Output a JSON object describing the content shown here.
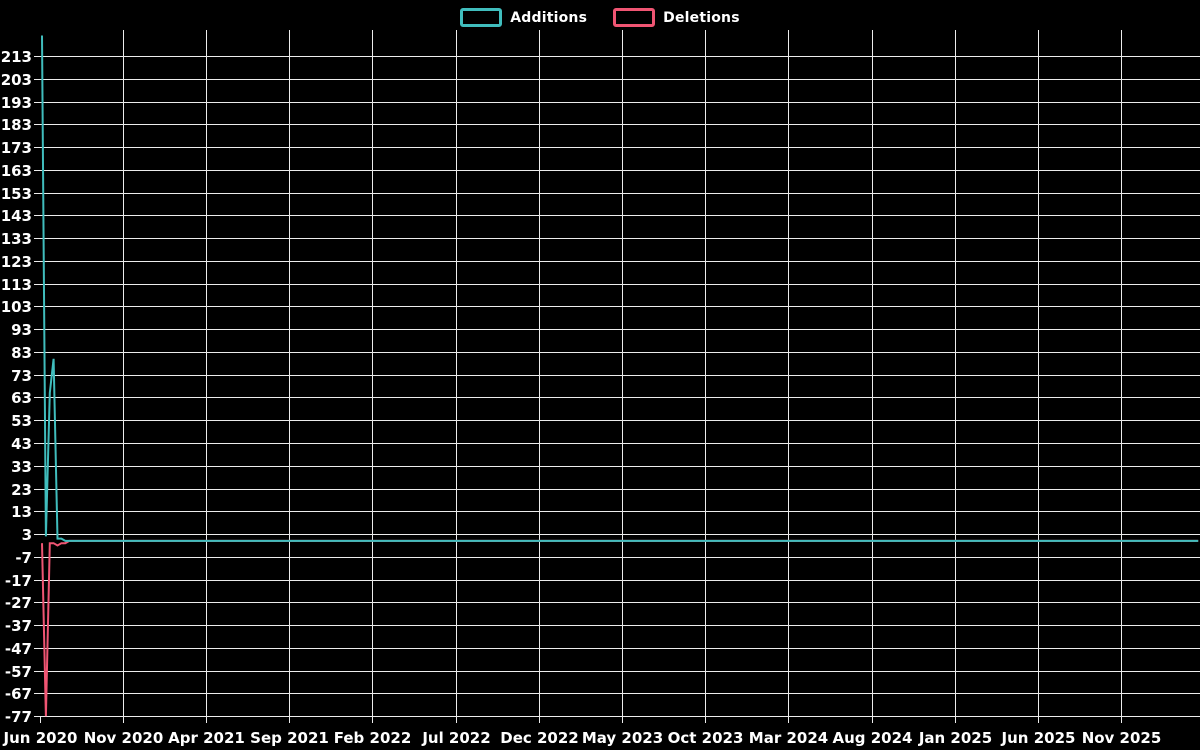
{
  "page": {
    "background_color": "#000000",
    "text_color": "#ffffff"
  },
  "chart_data": {
    "type": "line",
    "title": "",
    "legend_position": "top-center",
    "grid": true,
    "grid_color": "#ececec",
    "background_color": "#000000",
    "text_color": "#ffffff",
    "x_tick_labels": [
      "Jun 2020",
      "Nov 2020",
      "Apr 2021",
      "Sep 2021",
      "Feb 2022",
      "Jul 2022",
      "Dec 2022",
      "May 2023",
      "Oct 2023",
      "Mar 2024",
      "Aug 2024",
      "Jan 2025",
      "Jun 2025",
      "Nov 2025"
    ],
    "y_tick_labels": [
      213,
      203,
      193,
      183,
      173,
      163,
      153,
      143,
      133,
      123,
      113,
      103,
      93,
      83,
      73,
      63,
      53,
      43,
      33,
      23,
      13,
      3,
      -7,
      -17,
      -27,
      -37,
      -47,
      -57,
      -67,
      -77
    ],
    "ylim": [
      -81,
      225
    ],
    "x_unit": "weeks from first point (Jun 2020), flat tail extends past Nov 2025 to chart edge",
    "series": [
      {
        "name": "Deletions",
        "color": "#f05573",
        "points": [
          [
            0,
            -1
          ],
          [
            1,
            -77
          ],
          [
            2,
            -1
          ],
          [
            3,
            -1
          ],
          [
            4,
            -2
          ],
          [
            5,
            -1
          ],
          [
            6,
            -1
          ],
          [
            7,
            0
          ],
          [
            298,
            0
          ]
        ]
      },
      {
        "name": "Additions",
        "color": "#40bdbd",
        "points": [
          [
            0,
            222
          ],
          [
            1,
            2
          ],
          [
            2,
            65
          ],
          [
            3,
            80
          ],
          [
            4,
            1
          ],
          [
            5,
            1
          ],
          [
            6,
            0
          ],
          [
            7,
            0
          ],
          [
            298,
            0
          ]
        ]
      }
    ]
  }
}
